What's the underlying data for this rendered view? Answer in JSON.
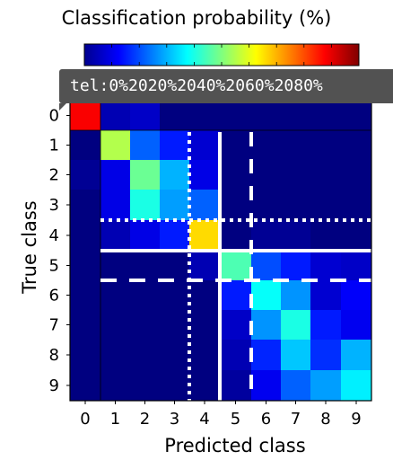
{
  "chart_data": {
    "type": "heatmap",
    "title": "",
    "colorbar": {
      "label": "Classification probability (%)",
      "min": 0,
      "max": 100,
      "colormap": "jet",
      "tooltip": "tel:0%2020%2040%2060%2080%"
    },
    "xlabel": "Predicted class",
    "ylabel": "True class",
    "x_categories": [
      "0",
      "1",
      "2",
      "3",
      "4",
      "5",
      "6",
      "7",
      "8",
      "9"
    ],
    "y_categories": [
      "0",
      "1",
      "2",
      "3",
      "4",
      "5",
      "6",
      "7",
      "8",
      "9"
    ],
    "values": [
      [
        88,
        5,
        7,
        0,
        0,
        0,
        0,
        0,
        0,
        0
      ],
      [
        0,
        55,
        22,
        15,
        8,
        0,
        0,
        0,
        0,
        0
      ],
      [
        2,
        10,
        48,
        30,
        10,
        0,
        0,
        0,
        0,
        0
      ],
      [
        0,
        10,
        40,
        28,
        22,
        0,
        0,
        0,
        0,
        0
      ],
      [
        0,
        5,
        10,
        15,
        66,
        0,
        2,
        2,
        0,
        0
      ],
      [
        0,
        0,
        0,
        0,
        5,
        45,
        20,
        15,
        8,
        7
      ],
      [
        0,
        0,
        0,
        0,
        0,
        15,
        38,
        27,
        8,
        12
      ],
      [
        0,
        0,
        0,
        0,
        0,
        7,
        27,
        40,
        15,
        11
      ],
      [
        0,
        0,
        0,
        0,
        0,
        5,
        16,
        32,
        17,
        30
      ],
      [
        0,
        0,
        0,
        0,
        0,
        3,
        11,
        22,
        28,
        36
      ]
    ],
    "annotations": {
      "solid_lines": {
        "between_columns": [
          4,
          5
        ],
        "between_rows": [
          4,
          5
        ]
      },
      "dotted_lines": {
        "between_columns": [
          3,
          4
        ],
        "between_rows": [
          3,
          4
        ]
      },
      "dashed_lines": {
        "between_columns": [
          5,
          6
        ],
        "between_rows": [
          5,
          6
        ]
      }
    }
  }
}
